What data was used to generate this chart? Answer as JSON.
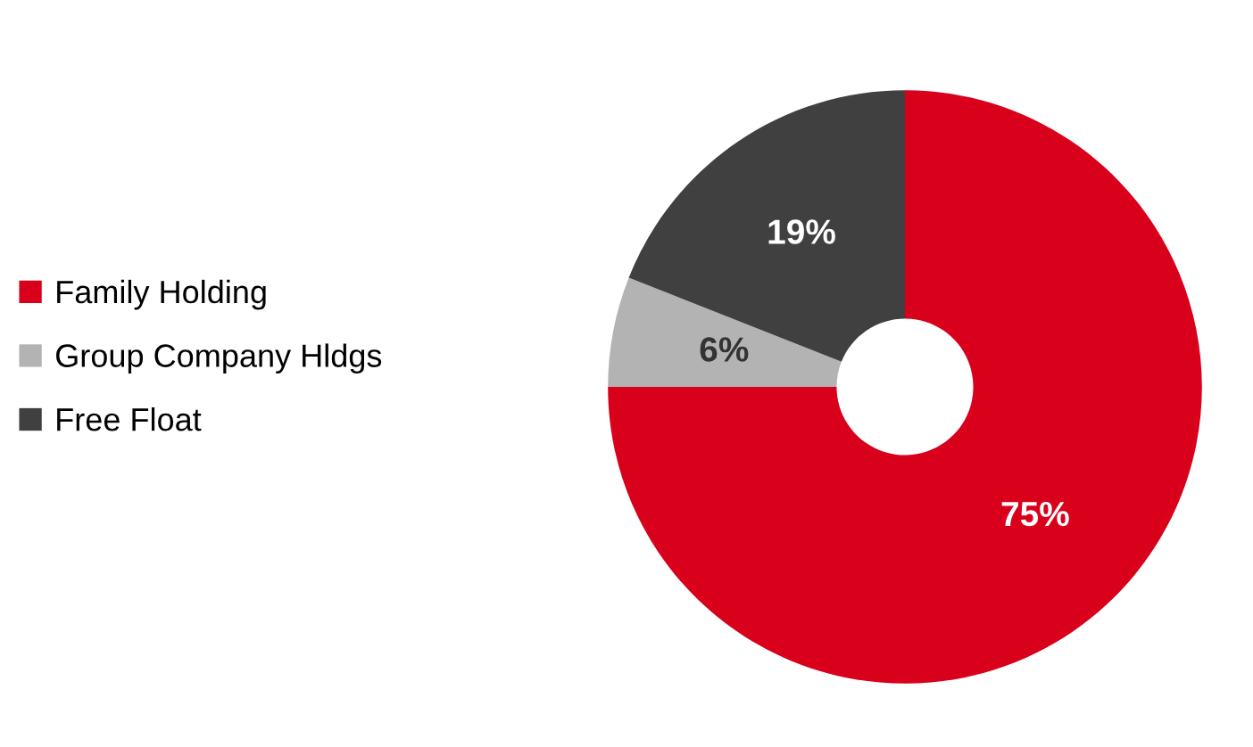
{
  "chart_data": {
    "type": "donut",
    "categories": [
      "Family Holding",
      "Group Company Hldgs",
      "Free Float"
    ],
    "values": [
      75,
      6,
      19
    ],
    "colors": [
      "#d9001b",
      "#b3b3b3",
      "#404040"
    ],
    "value_labels": [
      "75%",
      "6%",
      "19%"
    ],
    "legend": "left"
  }
}
